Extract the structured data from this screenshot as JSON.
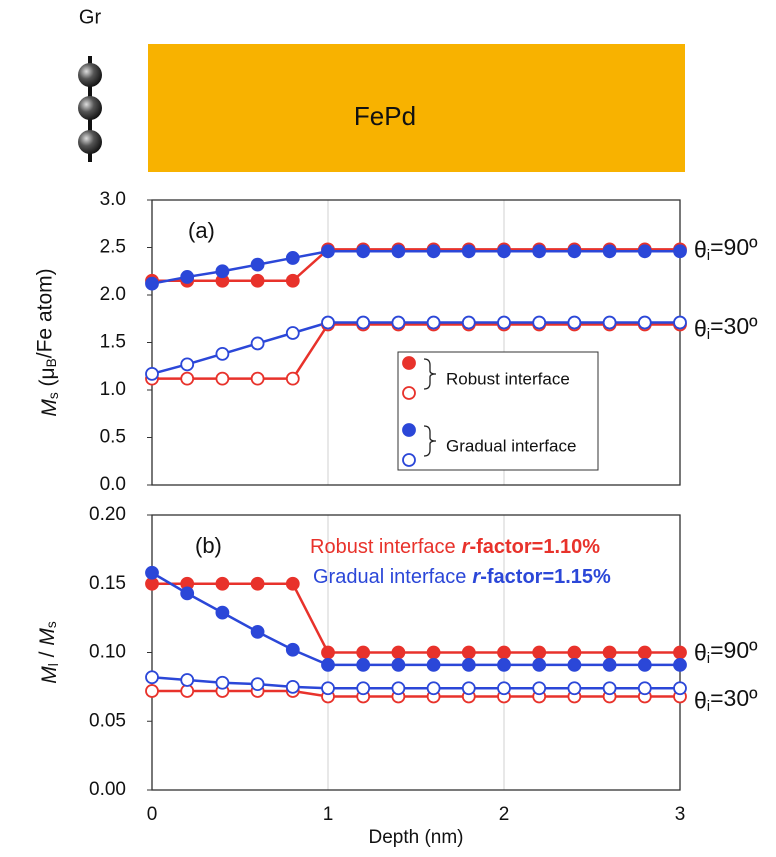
{
  "header": {
    "layer_left": "Gr",
    "layer_right": "FePd"
  },
  "chart_data": [
    {
      "type": "line",
      "label": "(a)",
      "y_label": [
        "M",
        "s",
        " (μ",
        "B",
        "/Fe atom)"
      ],
      "x": [
        0,
        0.2,
        0.4,
        0.6,
        0.8,
        1.0,
        1.2,
        1.4,
        1.6,
        1.8,
        2.0,
        2.2,
        2.4,
        2.6,
        2.8,
        3.0
      ],
      "xlim": [
        0,
        3
      ],
      "xticks": [
        0,
        1,
        2,
        3
      ],
      "ylim": [
        0,
        3
      ],
      "yticks": [
        {
          "value": 0,
          "label": "0.0"
        },
        0.5,
        {
          "value": 1,
          "label": "1.0"
        },
        1.5,
        {
          "value": 2,
          "label": "2.0"
        },
        2.5,
        {
          "value": 3,
          "label": "3.0"
        }
      ],
      "grid": true,
      "series": [
        {
          "name": "Robust interface",
          "color": "#e8322b",
          "filled": true,
          "values": [
            2.15,
            2.15,
            2.15,
            2.15,
            2.15,
            2.48,
            2.48,
            2.48,
            2.48,
            2.48,
            2.48,
            2.48,
            2.48,
            2.48,
            2.48,
            2.48
          ]
        },
        {
          "name": "Gradual interface",
          "color": "#2b47d8",
          "filled": true,
          "values": [
            2.12,
            2.19,
            2.25,
            2.32,
            2.39,
            2.46,
            2.46,
            2.46,
            2.46,
            2.46,
            2.46,
            2.46,
            2.46,
            2.46,
            2.46,
            2.46
          ]
        },
        {
          "name": "Robust interface",
          "color": "#e8322b",
          "filled": false,
          "values": [
            1.12,
            1.12,
            1.12,
            1.12,
            1.12,
            1.69,
            1.69,
            1.69,
            1.69,
            1.69,
            1.69,
            1.69,
            1.69,
            1.69,
            1.69,
            1.69
          ]
        },
        {
          "name": "Gradual interface",
          "color": "#2b47d8",
          "filled": false,
          "values": [
            1.17,
            1.27,
            1.38,
            1.49,
            1.6,
            1.71,
            1.71,
            1.71,
            1.71,
            1.71,
            1.71,
            1.71,
            1.71,
            1.71,
            1.71,
            1.71
          ]
        }
      ],
      "annotations": [
        [
          "θ",
          "i",
          "=90º"
        ],
        [
          "θ",
          "i",
          "=30º"
        ]
      ]
    },
    {
      "type": "line",
      "label": "(b)",
      "y_label": [
        "M",
        "l",
        " / ",
        "M",
        "s"
      ],
      "x_label": "Depth (nm)",
      "x": [
        0,
        0.2,
        0.4,
        0.6,
        0.8,
        1.0,
        1.2,
        1.4,
        1.6,
        1.8,
        2.0,
        2.2,
        2.4,
        2.6,
        2.8,
        3.0
      ],
      "xlim": [
        0,
        3
      ],
      "xticks": [
        0,
        1,
        2,
        3
      ],
      "ylim": [
        0,
        0.2
      ],
      "yticks": [
        {
          "value": 0,
          "label": "0.00"
        },
        0.05,
        {
          "value": 0.1,
          "label": "0.10"
        },
        0.15,
        {
          "value": 0.2,
          "label": "0.20"
        }
      ],
      "grid": true,
      "series": [
        {
          "name": "Robust interface",
          "color": "#e8322b",
          "filled": true,
          "values": [
            0.15,
            0.15,
            0.15,
            0.15,
            0.15,
            0.1,
            0.1,
            0.1,
            0.1,
            0.1,
            0.1,
            0.1,
            0.1,
            0.1,
            0.1,
            0.1
          ]
        },
        {
          "name": "Gradual interface",
          "color": "#2b47d8",
          "filled": true,
          "values": [
            0.158,
            0.143,
            0.129,
            0.115,
            0.102,
            0.091,
            0.091,
            0.091,
            0.091,
            0.091,
            0.091,
            0.091,
            0.091,
            0.091,
            0.091,
            0.091
          ]
        },
        {
          "name": "Robust interface",
          "color": "#e8322b",
          "filled": false,
          "values": [
            0.072,
            0.072,
            0.072,
            0.072,
            0.072,
            0.068,
            0.068,
            0.068,
            0.068,
            0.068,
            0.068,
            0.068,
            0.068,
            0.068,
            0.068,
            0.068
          ]
        },
        {
          "name": "Gradual interface",
          "color": "#2b47d8",
          "filled": false,
          "values": [
            0.082,
            0.08,
            0.078,
            0.077,
            0.075,
            0.074,
            0.074,
            0.074,
            0.074,
            0.074,
            0.074,
            0.074,
            0.074,
            0.074,
            0.074,
            0.074
          ]
        }
      ],
      "r_factors": [
        [
          "r",
          "-factor=1.10%"
        ],
        [
          "r",
          "-factor=1.15%"
        ]
      ],
      "annotations": [
        [
          "θ",
          "i",
          "=90º"
        ],
        [
          "θ",
          "i",
          "=30º"
        ]
      ]
    }
  ]
}
